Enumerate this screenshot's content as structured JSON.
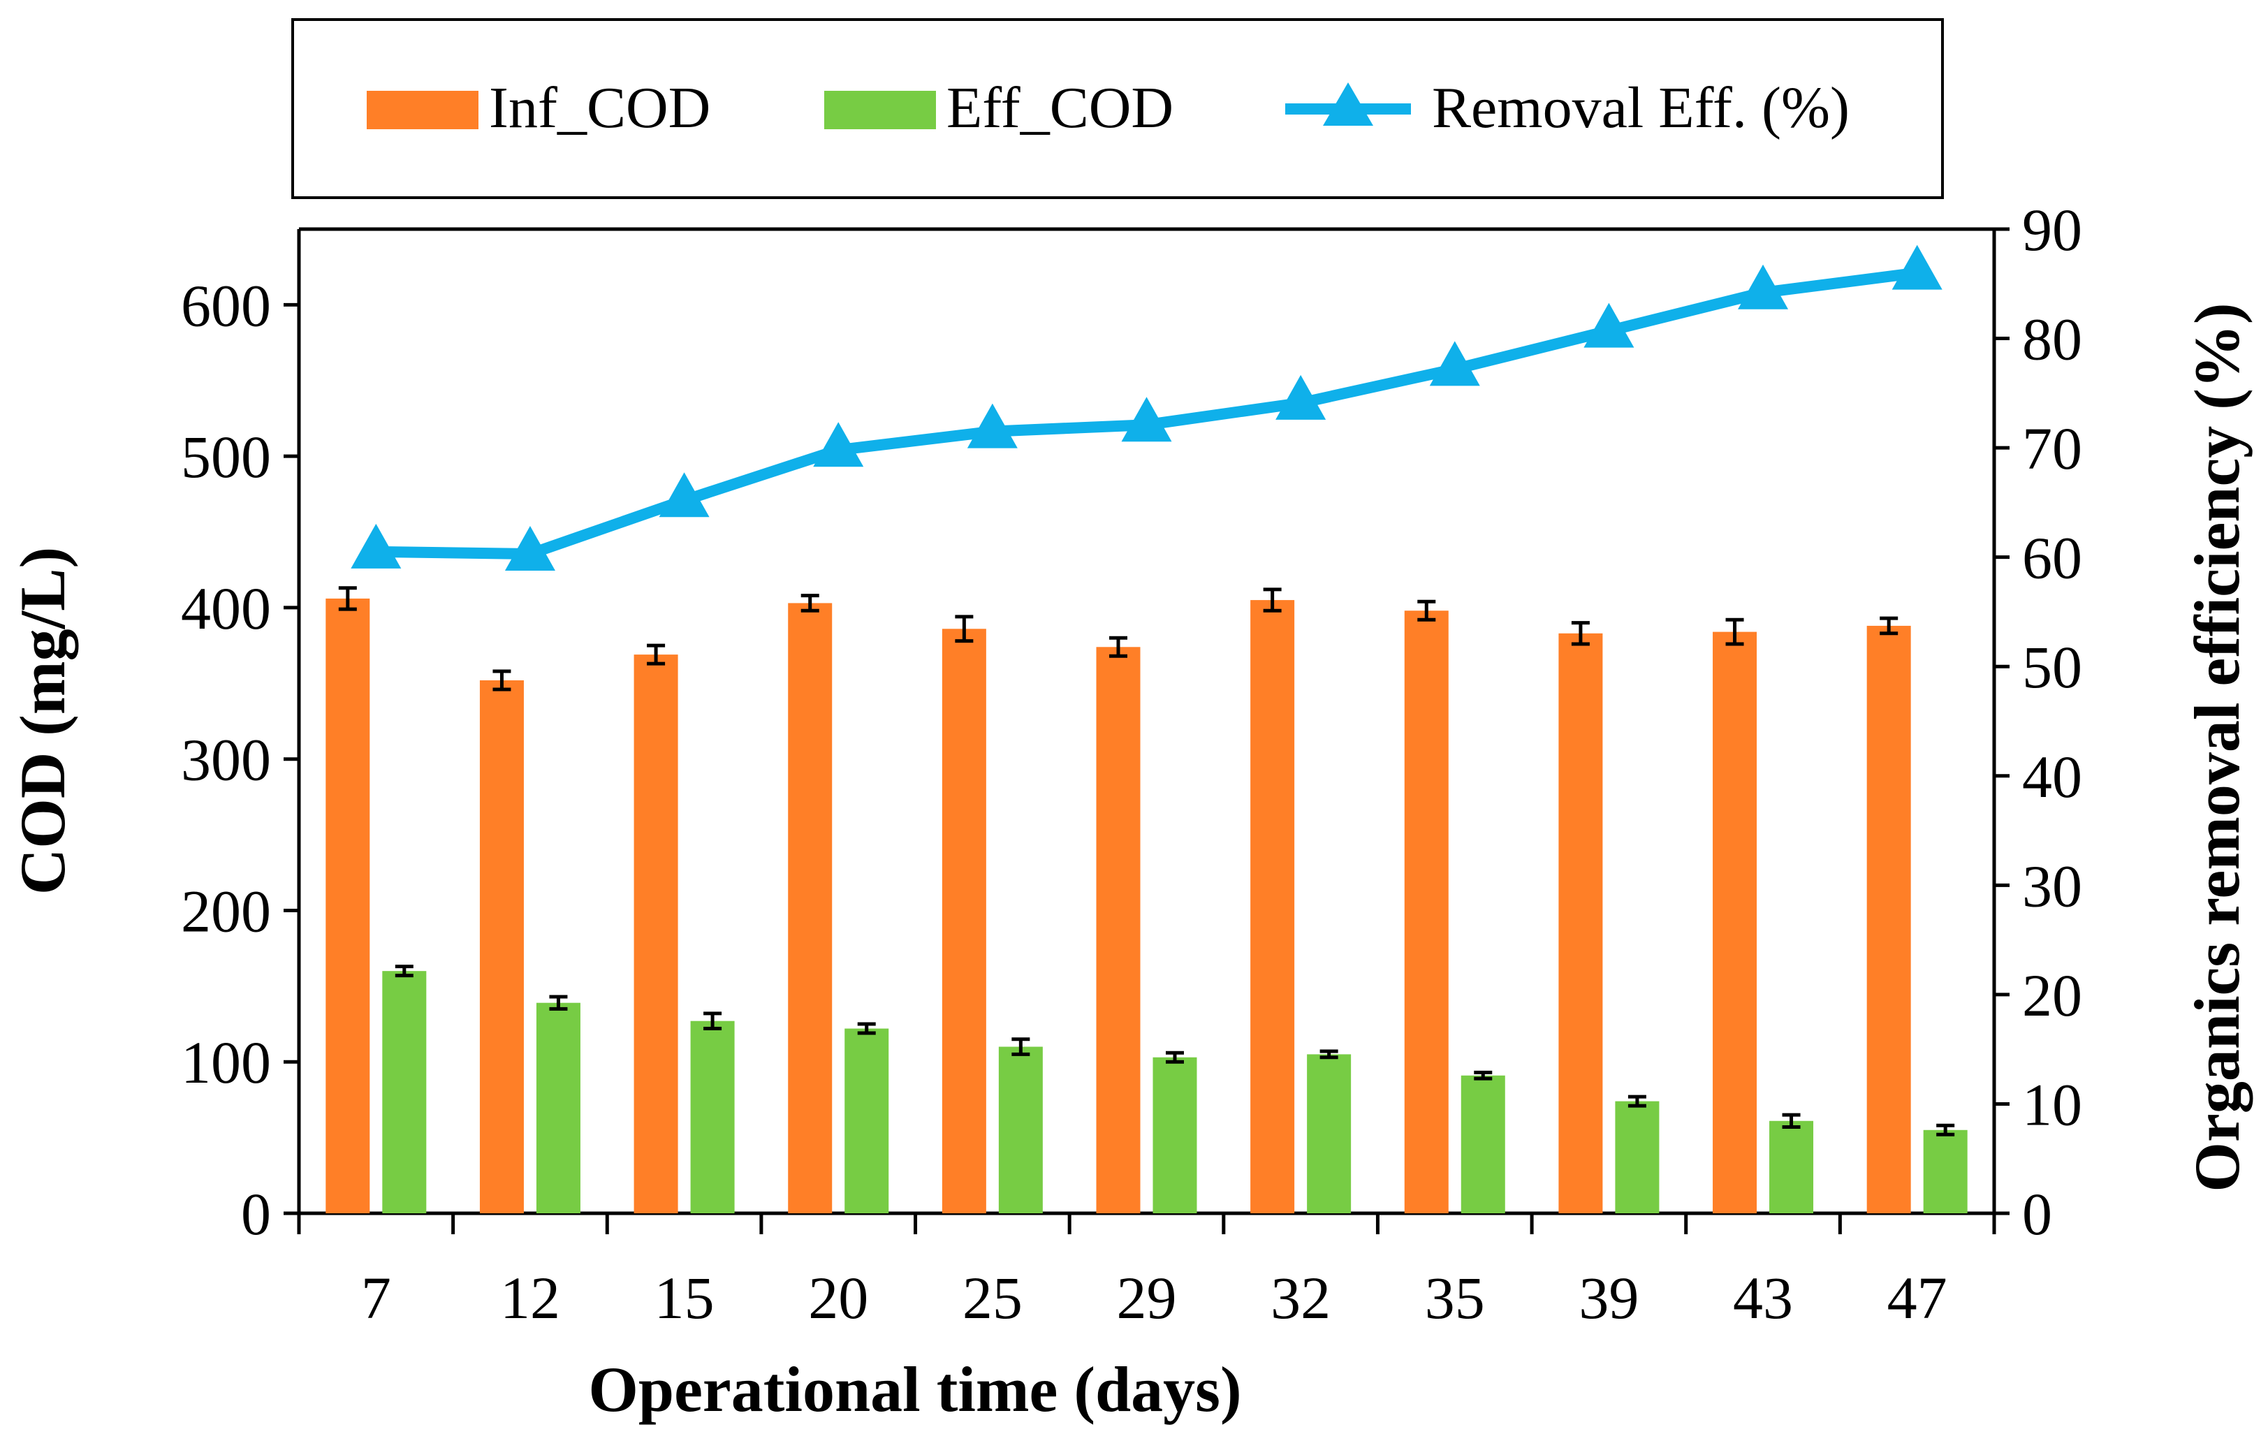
{
  "chart_data": {
    "type": "bar",
    "xlabel": "Operational time (days)",
    "ylabel": "COD (mg/L)",
    "y2label": "Organics removal efficiency (%)",
    "ylim": [
      0,
      650
    ],
    "y2lim": [
      0,
      90
    ],
    "yticks": [
      "0",
      "100",
      "200",
      "300",
      "400",
      "500",
      "600"
    ],
    "y2ticks": [
      "0",
      "10",
      "20",
      "30",
      "40",
      "50",
      "60",
      "70",
      "80",
      "90"
    ],
    "categories": [
      "7",
      "12",
      "15",
      "20",
      "25",
      "29",
      "32",
      "35",
      "39",
      "43",
      "47"
    ],
    "series": [
      {
        "name": "Inf_COD",
        "kind": "bar",
        "axis": "left",
        "color": "#FF7F27",
        "values": [
          406,
          352,
          369,
          403,
          386,
          374,
          405,
          398,
          383,
          384,
          388
        ],
        "errors": [
          7,
          6,
          6,
          5,
          8,
          6,
          7,
          6,
          7,
          8,
          5
        ]
      },
      {
        "name": "Eff_COD",
        "kind": "bar",
        "axis": "left",
        "color": "#77CC44",
        "values": [
          160,
          139,
          127,
          122,
          110,
          103,
          105,
          91,
          74,
          61,
          55
        ],
        "errors": [
          3,
          4,
          5,
          3,
          5,
          3,
          2,
          2,
          3,
          4,
          3
        ]
      },
      {
        "name": "Removal Eff. (%)",
        "kind": "line",
        "axis": "right",
        "color": "#0FB0EA",
        "values": [
          60.5,
          60.3,
          65.2,
          69.8,
          71.5,
          72.1,
          74.1,
          77.2,
          80.7,
          84.2,
          86.0
        ]
      }
    ],
    "legend": {
      "position": "top",
      "items": [
        "Inf_COD",
        "Eff_COD",
        "Removal Eff. (%)"
      ]
    }
  }
}
